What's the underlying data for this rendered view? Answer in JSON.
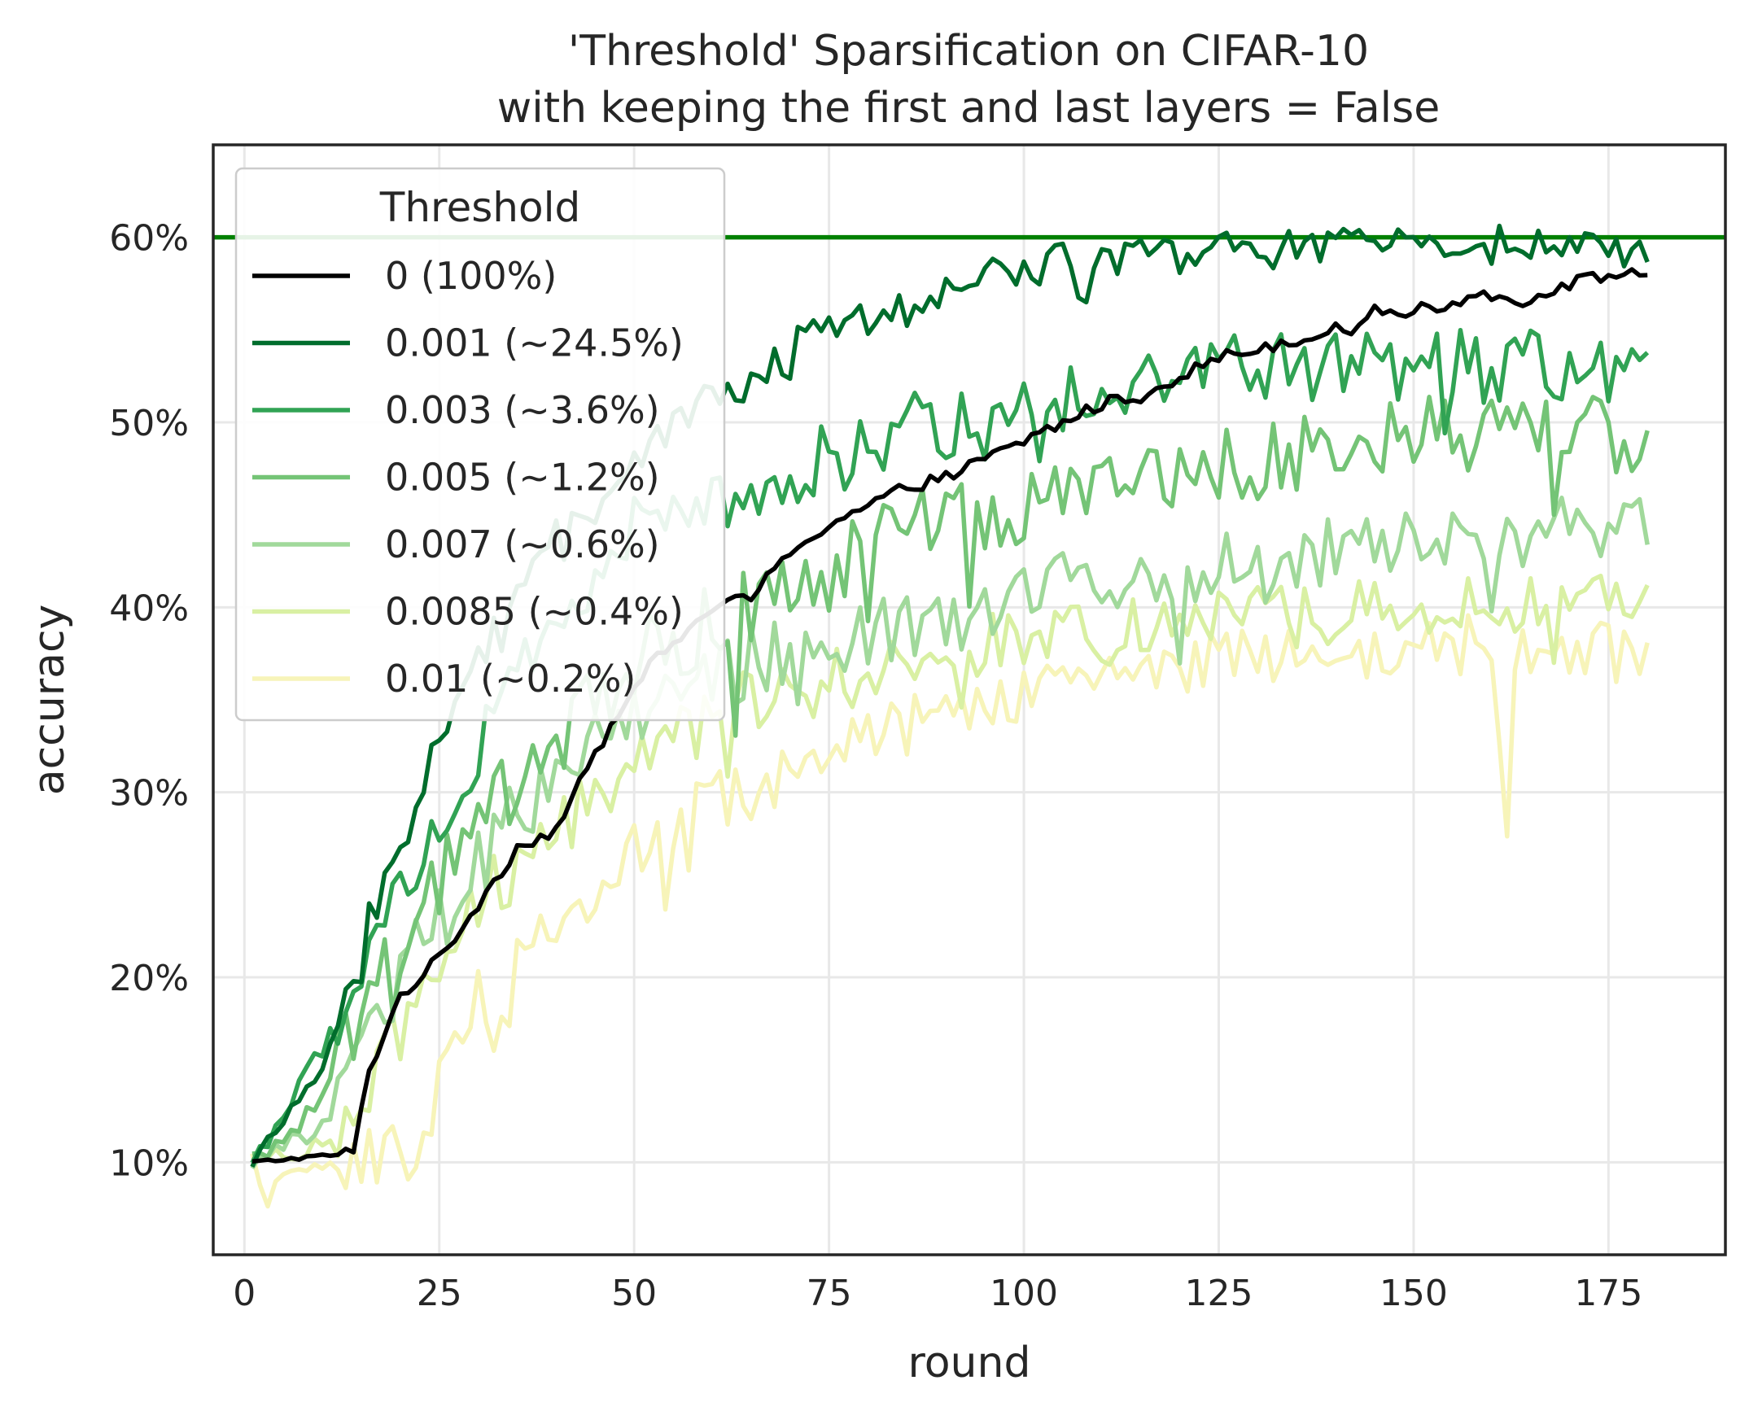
{
  "chart_data": {
    "type": "line",
    "title_line1": "'Threshold' Sparsification on CIFAR-10",
    "title_line2": "with keeping the first and last layers = False",
    "xlabel": "round",
    "ylabel": "accuracy",
    "xlim": [
      -4,
      190
    ],
    "ylim": [
      5,
      65
    ],
    "x_ticks": [
      0,
      25,
      50,
      75,
      100,
      125,
      150,
      175
    ],
    "y_ticks": [
      10,
      20,
      30,
      40,
      50,
      60
    ],
    "y_tick_labels": [
      "10%",
      "20%",
      "30%",
      "40%",
      "50%",
      "60%"
    ],
    "grid": true,
    "legend_title": "Threshold",
    "legend_position": "upper-left",
    "reference_line": {
      "y": 60,
      "color": "#008000"
    },
    "series": [
      {
        "name": " 0 (100%)",
        "color": "#000000",
        "noise": 0.35,
        "keypoints": [
          [
            1,
            10
          ],
          [
            14,
            10.5
          ],
          [
            16,
            15
          ],
          [
            20,
            19
          ],
          [
            25,
            21
          ],
          [
            30,
            24
          ],
          [
            35,
            27
          ],
          [
            40,
            28
          ],
          [
            45,
            32
          ],
          [
            50,
            36
          ],
          [
            55,
            38
          ],
          [
            60,
            40
          ],
          [
            65,
            40.5
          ],
          [
            70,
            43
          ],
          [
            75,
            44.5
          ],
          [
            80,
            45.5
          ],
          [
            85,
            46.5
          ],
          [
            90,
            47
          ],
          [
            95,
            48
          ],
          [
            100,
            49
          ],
          [
            105,
            50
          ],
          [
            110,
            51
          ],
          [
            115,
            51.5
          ],
          [
            120,
            52.5
          ],
          [
            125,
            53.5
          ],
          [
            130,
            54
          ],
          [
            135,
            54.5
          ],
          [
            140,
            55
          ],
          [
            145,
            56
          ],
          [
            150,
            56
          ],
          [
            155,
            56.5
          ],
          [
            160,
            57
          ],
          [
            165,
            56.5
          ],
          [
            170,
            57.5
          ],
          [
            175,
            58
          ],
          [
            180,
            58
          ]
        ]
      },
      {
        "name": "0.001 (~24.5%)",
        "color": "#006d2c",
        "noise": 1.0,
        "keypoints": [
          [
            1,
            10
          ],
          [
            10,
            15
          ],
          [
            15,
            22
          ],
          [
            20,
            27
          ],
          [
            25,
            33
          ],
          [
            30,
            37
          ],
          [
            35,
            41
          ],
          [
            40,
            44
          ],
          [
            45,
            46
          ],
          [
            50,
            48
          ],
          [
            55,
            49.5
          ],
          [
            60,
            51.5
          ],
          [
            65,
            52.5
          ],
          [
            70,
            54
          ],
          [
            75,
            55
          ],
          [
            80,
            55.5
          ],
          [
            85,
            56
          ],
          [
            90,
            57
          ],
          [
            95,
            58
          ],
          [
            100,
            58.5
          ],
          [
            105,
            59
          ],
          [
            110,
            59
          ],
          [
            115,
            59
          ],
          [
            120,
            59
          ],
          [
            125,
            59.5
          ],
          [
            130,
            59
          ],
          [
            135,
            59.5
          ],
          [
            140,
            59.5
          ],
          [
            145,
            59.5
          ],
          [
            150,
            60
          ],
          [
            155,
            59.5
          ],
          [
            160,
            60
          ],
          [
            165,
            59.5
          ],
          [
            170,
            59.5
          ],
          [
            175,
            59
          ],
          [
            180,
            59
          ]
        ]
      },
      {
        "name": "0.003 (~3.6%)",
        "color": "#31a354",
        "noise": 2.0,
        "keypoints": [
          [
            1,
            10
          ],
          [
            10,
            16
          ],
          [
            15,
            21
          ],
          [
            20,
            25
          ],
          [
            25,
            28
          ],
          [
            30,
            32
          ],
          [
            35,
            36
          ],
          [
            40,
            39
          ],
          [
            45,
            42
          ],
          [
            50,
            44
          ],
          [
            55,
            45
          ],
          [
            60,
            46
          ],
          [
            65,
            46.5
          ],
          [
            70,
            47
          ],
          [
            75,
            48
          ],
          [
            80,
            49
          ],
          [
            85,
            49.5
          ],
          [
            90,
            50
          ],
          [
            95,
            50.5
          ],
          [
            100,
            51
          ],
          [
            105,
            51.5
          ],
          [
            110,
            52
          ],
          [
            115,
            52.5
          ],
          [
            120,
            52.5
          ],
          [
            125,
            53
          ],
          [
            130,
            53
          ],
          [
            135,
            53
          ],
          [
            140,
            53
          ],
          [
            145,
            53
          ],
          [
            150,
            53
          ],
          [
            155,
            53
          ],
          [
            160,
            53
          ],
          [
            165,
            53
          ],
          [
            170,
            53
          ],
          [
            175,
            52.5
          ],
          [
            180,
            52
          ]
        ]
      },
      {
        "name": "0.005 (~1.2%)",
        "color": "#74c476",
        "noise": 2.2,
        "keypoints": [
          [
            1,
            10
          ],
          [
            10,
            13
          ],
          [
            15,
            18
          ],
          [
            20,
            22
          ],
          [
            25,
            25
          ],
          [
            30,
            28
          ],
          [
            35,
            31
          ],
          [
            40,
            33
          ],
          [
            45,
            35
          ],
          [
            50,
            37
          ],
          [
            55,
            38
          ],
          [
            60,
            39
          ],
          [
            65,
            40
          ],
          [
            70,
            41
          ],
          [
            75,
            42
          ],
          [
            80,
            43
          ],
          [
            85,
            44
          ],
          [
            90,
            44.5
          ],
          [
            95,
            45
          ],
          [
            100,
            45.5
          ],
          [
            105,
            46
          ],
          [
            110,
            46.5
          ],
          [
            115,
            47
          ],
          [
            120,
            47.5
          ],
          [
            125,
            48
          ],
          [
            130,
            48
          ],
          [
            135,
            48.5
          ],
          [
            140,
            49
          ],
          [
            145,
            49
          ],
          [
            150,
            49.5
          ],
          [
            155,
            49.5
          ],
          [
            160,
            49.5
          ],
          [
            165,
            50
          ],
          [
            170,
            50
          ],
          [
            175,
            49.5
          ],
          [
            180,
            49
          ]
        ]
      },
      {
        "name": "0.007 (~0.6%)",
        "color": "#a1d99b",
        "noise": 2.0,
        "keypoints": [
          [
            1,
            10
          ],
          [
            10,
            12
          ],
          [
            15,
            16
          ],
          [
            20,
            20
          ],
          [
            25,
            23
          ],
          [
            30,
            26
          ],
          [
            35,
            29
          ],
          [
            40,
            31
          ],
          [
            45,
            33
          ],
          [
            50,
            34
          ],
          [
            55,
            35
          ],
          [
            60,
            36
          ],
          [
            65,
            37
          ],
          [
            70,
            37.5
          ],
          [
            75,
            38
          ],
          [
            80,
            38.5
          ],
          [
            85,
            39
          ],
          [
            90,
            39.5
          ],
          [
            95,
            40
          ],
          [
            100,
            40.5
          ],
          [
            105,
            41
          ],
          [
            110,
            41.5
          ],
          [
            115,
            42
          ],
          [
            120,
            42
          ],
          [
            125,
            42.5
          ],
          [
            130,
            42.5
          ],
          [
            135,
            43
          ],
          [
            140,
            43
          ],
          [
            145,
            43.5
          ],
          [
            150,
            43.5
          ],
          [
            155,
            44
          ],
          [
            160,
            44
          ],
          [
            165,
            44
          ],
          [
            170,
            44.5
          ],
          [
            175,
            44.5
          ],
          [
            180,
            45
          ]
        ]
      },
      {
        "name": "0.0085 (~0.4%)",
        "color": "#d9f0a3",
        "noise": 1.8,
        "keypoints": [
          [
            1,
            10
          ],
          [
            10,
            11
          ],
          [
            15,
            13
          ],
          [
            20,
            17
          ],
          [
            25,
            21
          ],
          [
            30,
            24
          ],
          [
            35,
            26
          ],
          [
            40,
            28
          ],
          [
            45,
            30
          ],
          [
            50,
            31.5
          ],
          [
            55,
            33
          ],
          [
            60,
            34
          ],
          [
            65,
            35
          ],
          [
            70,
            35.5
          ],
          [
            75,
            36
          ],
          [
            80,
            36.5
          ],
          [
            85,
            37
          ],
          [
            90,
            37.5
          ],
          [
            95,
            38
          ],
          [
            100,
            38
          ],
          [
            105,
            38.5
          ],
          [
            110,
            38.5
          ],
          [
            115,
            39
          ],
          [
            120,
            39
          ],
          [
            125,
            39
          ],
          [
            130,
            39.5
          ],
          [
            135,
            39.5
          ],
          [
            140,
            39.5
          ],
          [
            145,
            40
          ],
          [
            150,
            40
          ],
          [
            155,
            40
          ],
          [
            160,
            40
          ],
          [
            165,
            40
          ],
          [
            170,
            40
          ],
          [
            175,
            40
          ],
          [
            180,
            41.5
          ]
        ]
      },
      {
        "name": "0.01 (~0.2%)",
        "color": "#f7f4b9",
        "noise": 1.6,
        "keypoints": [
          [
            1,
            10
          ],
          [
            3,
            7.5
          ],
          [
            5,
            9.5
          ],
          [
            10,
            10
          ],
          [
            15,
            10
          ],
          [
            20,
            11
          ],
          [
            22,
            10
          ],
          [
            25,
            14
          ],
          [
            30,
            19
          ],
          [
            34,
            16
          ],
          [
            35,
            21
          ],
          [
            40,
            23
          ],
          [
            45,
            25
          ],
          [
            50,
            27
          ],
          [
            55,
            28.5
          ],
          [
            60,
            29.5
          ],
          [
            65,
            30
          ],
          [
            70,
            31
          ],
          [
            75,
            32
          ],
          [
            80,
            33
          ],
          [
            85,
            33.5
          ],
          [
            90,
            34.5
          ],
          [
            95,
            35
          ],
          [
            100,
            35.5
          ],
          [
            105,
            36
          ],
          [
            110,
            36.5
          ],
          [
            115,
            37
          ],
          [
            120,
            37
          ],
          [
            125,
            37
          ],
          [
            130,
            37.5
          ],
          [
            135,
            37.5
          ],
          [
            140,
            37.5
          ],
          [
            145,
            37.5
          ],
          [
            150,
            37.5
          ],
          [
            155,
            38
          ],
          [
            160,
            38
          ],
          [
            162,
            28
          ],
          [
            163,
            37.5
          ],
          [
            165,
            38
          ],
          [
            170,
            38
          ],
          [
            175,
            37.5
          ],
          [
            180,
            37
          ]
        ]
      }
    ]
  }
}
